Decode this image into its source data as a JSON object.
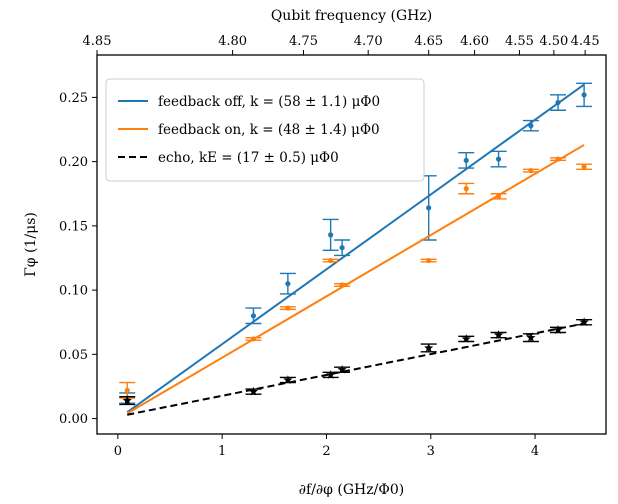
{
  "chart_data": {
    "type": "scatter",
    "title": "",
    "xlabel": "∂f/∂φ (GHz/Φ0)",
    "ylabel": "Γφ (1/μs)",
    "x2label": "Qubit frequency (GHz)",
    "xlim": [
      -0.2,
      4.68
    ],
    "ylim": [
      -0.012,
      0.283
    ],
    "x_ticks": [
      0,
      1,
      2,
      3,
      4
    ],
    "y_ticks": [
      0.0,
      0.05,
      0.1,
      0.15,
      0.2,
      0.25
    ],
    "y_tick_labels": [
      "0.00",
      "0.05",
      "0.10",
      "0.15",
      "0.20",
      "0.25"
    ],
    "top_axis": {
      "ticks": [
        {
          "label": "4.85",
          "at_x": -0.2
        },
        {
          "label": "4.80",
          "at_x": 1.1
        },
        {
          "label": "4.75",
          "at_x": 1.78
        },
        {
          "label": "4.70",
          "at_x": 2.4
        },
        {
          "label": "4.65",
          "at_x": 2.98
        },
        {
          "label": "4.60",
          "at_x": 3.42
        },
        {
          "label": "4.55",
          "at_x": 3.85
        },
        {
          "label": "4.50",
          "at_x": 4.18
        },
        {
          "label": "4.45",
          "at_x": 4.48
        }
      ]
    },
    "grid": false,
    "legend_position": "top-left",
    "series": [
      {
        "name": "feedback off",
        "fit_label": "k = (58 ± 1.1) μΦ0",
        "color": "#1f77b4",
        "marker": "circle",
        "points": [
          {
            "x": 0.09,
            "y": 0.016,
            "err": 0.004
          },
          {
            "x": 1.3,
            "y": 0.08,
            "err": 0.006
          },
          {
            "x": 1.63,
            "y": 0.105,
            "err": 0.008
          },
          {
            "x": 2.04,
            "y": 0.143,
            "err": 0.012
          },
          {
            "x": 2.15,
            "y": 0.133,
            "err": 0.006
          },
          {
            "x": 2.98,
            "y": 0.164,
            "err": 0.025
          },
          {
            "x": 3.34,
            "y": 0.201,
            "err": 0.006
          },
          {
            "x": 3.65,
            "y": 0.202,
            "err": 0.006
          },
          {
            "x": 3.96,
            "y": 0.228,
            "err": 0.004
          },
          {
            "x": 4.22,
            "y": 0.246,
            "err": 0.006
          },
          {
            "x": 4.47,
            "y": 0.252,
            "err": 0.009
          }
        ],
        "fit": {
          "x": [
            0.09,
            4.47
          ],
          "y": [
            0.005,
            0.26
          ]
        }
      },
      {
        "name": "feedback on",
        "fit_label": "k = (48 ± 1.4) μΦ0",
        "color": "#ff7f0e",
        "marker": "circle",
        "points": [
          {
            "x": 0.09,
            "y": 0.022,
            "err": 0.006
          },
          {
            "x": 1.3,
            "y": 0.062,
            "err": 0.001
          },
          {
            "x": 1.63,
            "y": 0.086,
            "err": 0.001
          },
          {
            "x": 2.04,
            "y": 0.123,
            "err": 0.001
          },
          {
            "x": 2.15,
            "y": 0.104,
            "err": 0.001
          },
          {
            "x": 2.98,
            "y": 0.123,
            "err": 0.001
          },
          {
            "x": 3.34,
            "y": 0.179,
            "err": 0.004
          },
          {
            "x": 3.65,
            "y": 0.173,
            "err": 0.002
          },
          {
            "x": 3.96,
            "y": 0.193,
            "err": 0.001
          },
          {
            "x": 4.22,
            "y": 0.202,
            "err": 0.001
          },
          {
            "x": 4.47,
            "y": 0.196,
            "err": 0.002
          }
        ],
        "fit": {
          "x": [
            0.09,
            4.47
          ],
          "y": [
            0.004,
            0.213
          ]
        }
      },
      {
        "name": "echo",
        "fit_label": "kE = (17 ± 0.5) μΦ0",
        "color": "#000000",
        "marker": "star",
        "dashed": true,
        "points": [
          {
            "x": 0.09,
            "y": 0.014,
            "err": 0.003
          },
          {
            "x": 1.3,
            "y": 0.021,
            "err": 0.002
          },
          {
            "x": 1.63,
            "y": 0.03,
            "err": 0.002
          },
          {
            "x": 2.04,
            "y": 0.034,
            "err": 0.002
          },
          {
            "x": 2.15,
            "y": 0.038,
            "err": 0.002
          },
          {
            "x": 2.98,
            "y": 0.055,
            "err": 0.003
          },
          {
            "x": 3.34,
            "y": 0.062,
            "err": 0.002
          },
          {
            "x": 3.65,
            "y": 0.065,
            "err": 0.002
          },
          {
            "x": 3.96,
            "y": 0.063,
            "err": 0.003
          },
          {
            "x": 4.22,
            "y": 0.069,
            "err": 0.002
          },
          {
            "x": 4.47,
            "y": 0.075,
            "err": 0.002
          }
        ],
        "fit": {
          "x": [
            0.09,
            4.47
          ],
          "y": [
            0.003,
            0.074
          ]
        }
      }
    ]
  }
}
